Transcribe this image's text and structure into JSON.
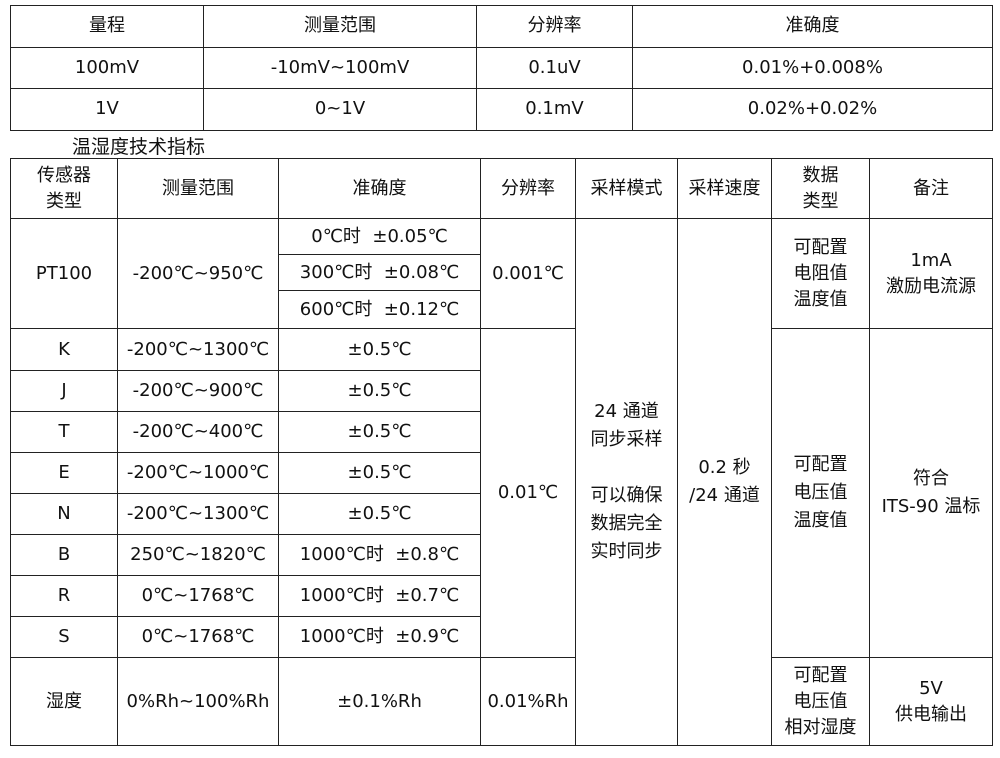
{
  "range_table": {
    "headers": [
      "量程",
      "测量范围",
      "分辨率",
      "准确度"
    ],
    "rows": [
      [
        "100mV",
        "-10mV~100mV",
        "0.1uV",
        "0.01%+0.008%"
      ],
      [
        "1V",
        "0~1V",
        "0.1mV",
        "0.02%+0.02%"
      ]
    ]
  },
  "section_heading": "温湿度技术指标",
  "sensor_table": {
    "headers": [
      "传感器\n类型",
      "测量范围",
      "准确度",
      "分辨率",
      "采样模式",
      "采样速度",
      "数据\n类型",
      "备注"
    ],
    "pt100": {
      "type": "PT100",
      "range": "-200℃~950℃",
      "accuracy": [
        "0℃时  ±0.05℃",
        "300℃时  ±0.08℃",
        "600℃时  ±0.12℃"
      ],
      "resolution": "0.001℃",
      "data_type": "可配置\n电阻值\n温度值",
      "remark": "1mA\n激励电流源"
    },
    "thermocouples": [
      {
        "type": "K",
        "range": "-200℃~1300℃",
        "accuracy": "±0.5℃"
      },
      {
        "type": "J",
        "range": "-200℃~900℃",
        "accuracy": "±0.5℃"
      },
      {
        "type": "T",
        "range": "-200℃~400℃",
        "accuracy": "±0.5℃"
      },
      {
        "type": "E",
        "range": "-200℃~1000℃",
        "accuracy": "±0.5℃"
      },
      {
        "type": "N",
        "range": "-200℃~1300℃",
        "accuracy": "±0.5℃"
      },
      {
        "type": "B",
        "range": "250℃~1820℃",
        "accuracy": "1000℃时  ±0.8℃"
      },
      {
        "type": "R",
        "range": "0℃~1768℃",
        "accuracy": "1000℃时  ±0.7℃"
      },
      {
        "type": "S",
        "range": "0℃~1768℃",
        "accuracy": "1000℃时  ±0.9℃"
      }
    ],
    "tc_resolution": "0.01℃",
    "tc_data_type": "可配置\n电压值\n温度值",
    "tc_remark": "符合\nITS-90 温标",
    "sampling_mode": "24 通道\n同步采样\n\n可以确保\n数据完全\n实时同步",
    "sampling_speed": "0.2 秒\n/24 通道",
    "humidity": {
      "type": "湿度",
      "range": "0%Rh~100%Rh",
      "accuracy": "±0.1%Rh",
      "resolution": "0.01%Rh",
      "data_type": "可配置\n电压值\n相对湿度",
      "remark": "5V\n供电输出"
    }
  }
}
